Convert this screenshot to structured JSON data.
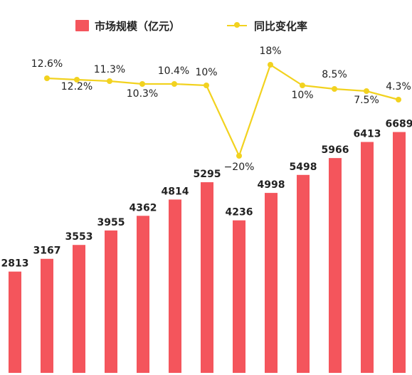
{
  "legend": {
    "bar": "市场规模（亿元）",
    "line": "同比变化率"
  },
  "colors": {
    "bar": "#f4555c",
    "line": "#f2d21f",
    "label": "#222222"
  },
  "chart_data": {
    "type": "bar-line",
    "series": [
      {
        "name": "市场规模（亿元）",
        "type": "bar",
        "values": [
          2813,
          3167,
          3553,
          3955,
          4362,
          4814,
          5295,
          4236,
          4998,
          5498,
          5966,
          6413,
          6689
        ]
      },
      {
        "name": "同比变化率",
        "type": "line",
        "values": [
          12.6,
          12.2,
          11.3,
          10.3,
          10.4,
          10,
          -20,
          18,
          10,
          8.5,
          7.5,
          4.3
        ],
        "labels": [
          "12.6%",
          "12.2%",
          "11.3%",
          "10.3%",
          "10.4%",
          "10%",
          "−20%",
          "18%",
          "10%",
          "8.5%",
          "7.5%",
          "4.3%"
        ]
      }
    ]
  }
}
